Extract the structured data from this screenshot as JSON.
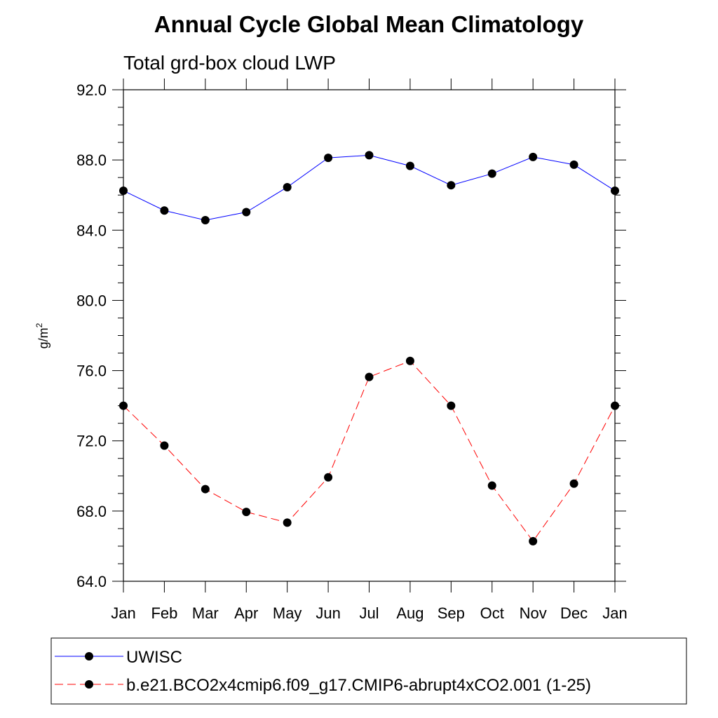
{
  "chart_data": {
    "type": "line",
    "title": "Annual Cycle Global Mean Climatology",
    "subtitle": "Total grd-box cloud LWP",
    "ylabel_base": "g/m",
    "ylabel_sup": "2",
    "xlabel": "",
    "categories": [
      "Jan",
      "Feb",
      "Mar",
      "Apr",
      "May",
      "Jun",
      "Jul",
      "Aug",
      "Sep",
      "Oct",
      "Nov",
      "Dec",
      "Jan"
    ],
    "ylim": [
      64.0,
      92.0
    ],
    "yticks": [
      64.0,
      68.0,
      72.0,
      76.0,
      80.0,
      84.0,
      88.0,
      92.0
    ],
    "ytick_labels": [
      "64.0",
      "68.0",
      "72.0",
      "76.0",
      "80.0",
      "84.0",
      "88.0",
      "92.0"
    ],
    "grid": false,
    "legend_position": "bottom",
    "series": [
      {
        "name": "UWISC",
        "color": "#0000ff",
        "line_style": "solid",
        "marker": "filled-circle",
        "values": [
          86.25,
          85.12,
          84.57,
          85.03,
          86.45,
          88.12,
          88.27,
          87.66,
          86.56,
          87.22,
          88.17,
          87.73,
          86.25
        ]
      },
      {
        "name": "b.e21.BCO2x4cmip6.f09_g17.CMIP6-abrupt4xCO2.001 (1-25)",
        "color": "#ff0000",
        "line_style": "dashed",
        "marker": "filled-circle",
        "values": [
          74.0,
          71.73,
          69.25,
          67.95,
          67.34,
          69.92,
          75.64,
          76.55,
          74.0,
          69.45,
          66.28,
          69.56,
          74.0
        ]
      }
    ]
  }
}
